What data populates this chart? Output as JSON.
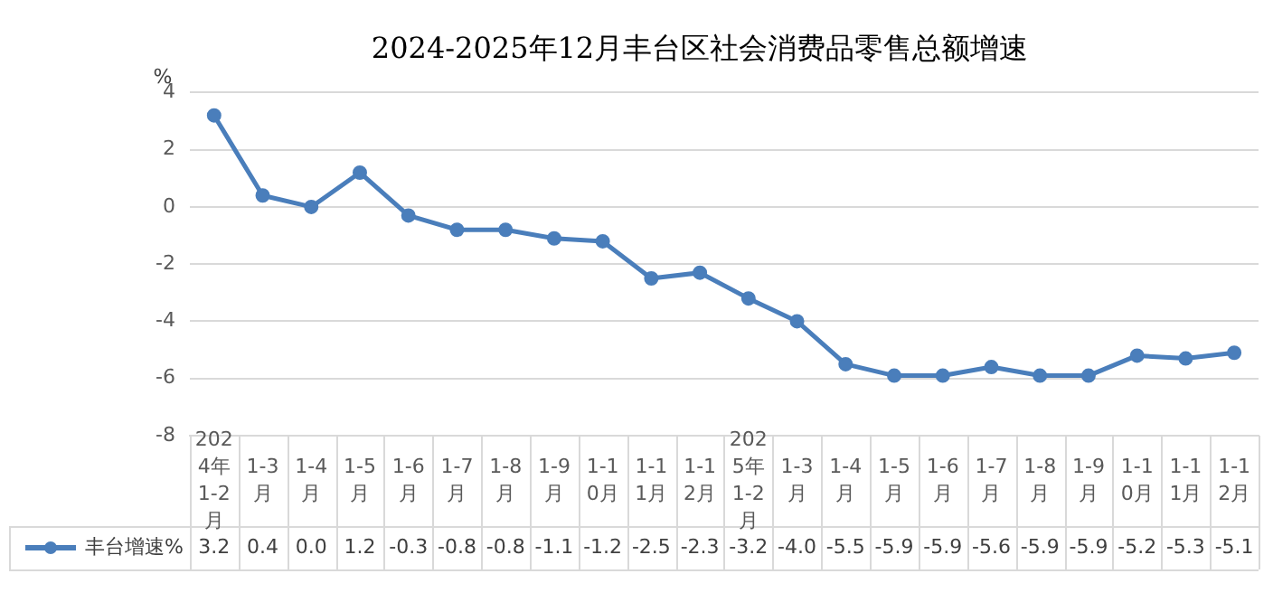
{
  "chart_data": {
    "type": "line",
    "title": "2024-2025年12月丰台区社会消费品零售总额增速",
    "ylabel": "%",
    "categories": [
      "2024年1-2月",
      "1-3月",
      "1-4月",
      "1-5月",
      "1-6月",
      "1-7月",
      "1-8月",
      "1-9月",
      "1-10月",
      "1-11月",
      "1-12月",
      "2025年1-2月",
      "1-3月",
      "1-4月",
      "1-5月",
      "1-6月",
      "1-7月",
      "1-8月",
      "1-9月",
      "1-10月",
      "1-11月",
      "1-12月"
    ],
    "series": [
      {
        "name": "丰台增速%",
        "color": "#4a7ebb",
        "values": [
          3.2,
          0.4,
          0.0,
          1.2,
          -0.3,
          -0.8,
          -0.8,
          -1.1,
          -1.2,
          -2.5,
          -2.3,
          -3.2,
          -4.0,
          -5.5,
          -5.9,
          -5.9,
          -5.6,
          -5.9,
          -5.9,
          -5.2,
          -5.3,
          -5.1
        ],
        "value_labels": [
          "3.2",
          "0.4",
          "0.0",
          "1.2",
          "-0.3",
          "-0.8",
          "-0.8",
          "-1.1",
          "-1.2",
          "-2.5",
          "-2.3",
          "-3.2",
          "-4.0",
          "-5.5",
          "-5.9",
          "-5.9",
          "-5.6",
          "-5.9",
          "-5.9",
          "-5.2",
          "-5.3",
          "-5.1"
        ]
      }
    ],
    "ylim": [
      -8,
      4
    ],
    "yticks": [
      -8,
      -6,
      -4,
      -2,
      0,
      2,
      4
    ],
    "grid": "y",
    "legend": "bottom left",
    "marker": "circle",
    "line_style": "solid"
  }
}
